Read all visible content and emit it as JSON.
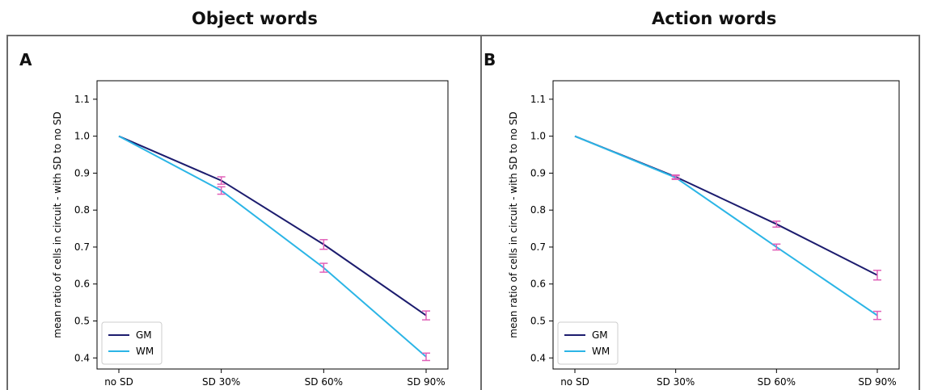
{
  "panels": [
    {
      "title": "Object words",
      "letter": "A"
    },
    {
      "title": "Action words",
      "letter": "B"
    }
  ],
  "colors": {
    "GM": "#1c1c6e",
    "WM": "#2bb5e6",
    "errorbar": "#e060b8",
    "frame": "#6b6b6b"
  },
  "chart_data": [
    {
      "type": "line",
      "title": "",
      "xlabel": "",
      "ylabel": "mean ratio of cells in circuit - with SD to no SD",
      "categories": [
        "no SD",
        "SD 30%",
        "SD 60%",
        "SD 90%"
      ],
      "ylim": [
        0.37,
        1.15
      ],
      "yticks": [
        "0.4",
        "0.5",
        "0.6",
        "0.7",
        "0.8",
        "0.9",
        "1.0",
        "1.1"
      ],
      "legend_position": "lower-left",
      "series": [
        {
          "name": "GM",
          "values": [
            1.0,
            0.88,
            0.707,
            0.515
          ],
          "errors": [
            0,
            0.01,
            0.013,
            0.012
          ]
        },
        {
          "name": "WM",
          "values": [
            1.0,
            0.853,
            0.644,
            0.403
          ],
          "errors": [
            0,
            0.01,
            0.012,
            0.01
          ]
        }
      ]
    },
    {
      "type": "line",
      "title": "",
      "xlabel": "",
      "ylabel": "mean ratio of cells in circuit - with SD to no SD",
      "categories": [
        "no SD",
        "SD 30%",
        "SD 60%",
        "SD 90%"
      ],
      "ylim": [
        0.37,
        1.15
      ],
      "yticks": [
        "0.4",
        "0.5",
        "0.6",
        "0.7",
        "0.8",
        "0.9",
        "1.0",
        "1.1"
      ],
      "legend_position": "lower-left",
      "series": [
        {
          "name": "GM",
          "values": [
            1.0,
            0.89,
            0.762,
            0.624
          ],
          "errors": [
            0,
            0.005,
            0.008,
            0.013
          ]
        },
        {
          "name": "WM",
          "values": [
            1.0,
            0.888,
            0.7,
            0.515
          ],
          "errors": [
            0,
            0.005,
            0.008,
            0.011
          ]
        }
      ]
    }
  ]
}
